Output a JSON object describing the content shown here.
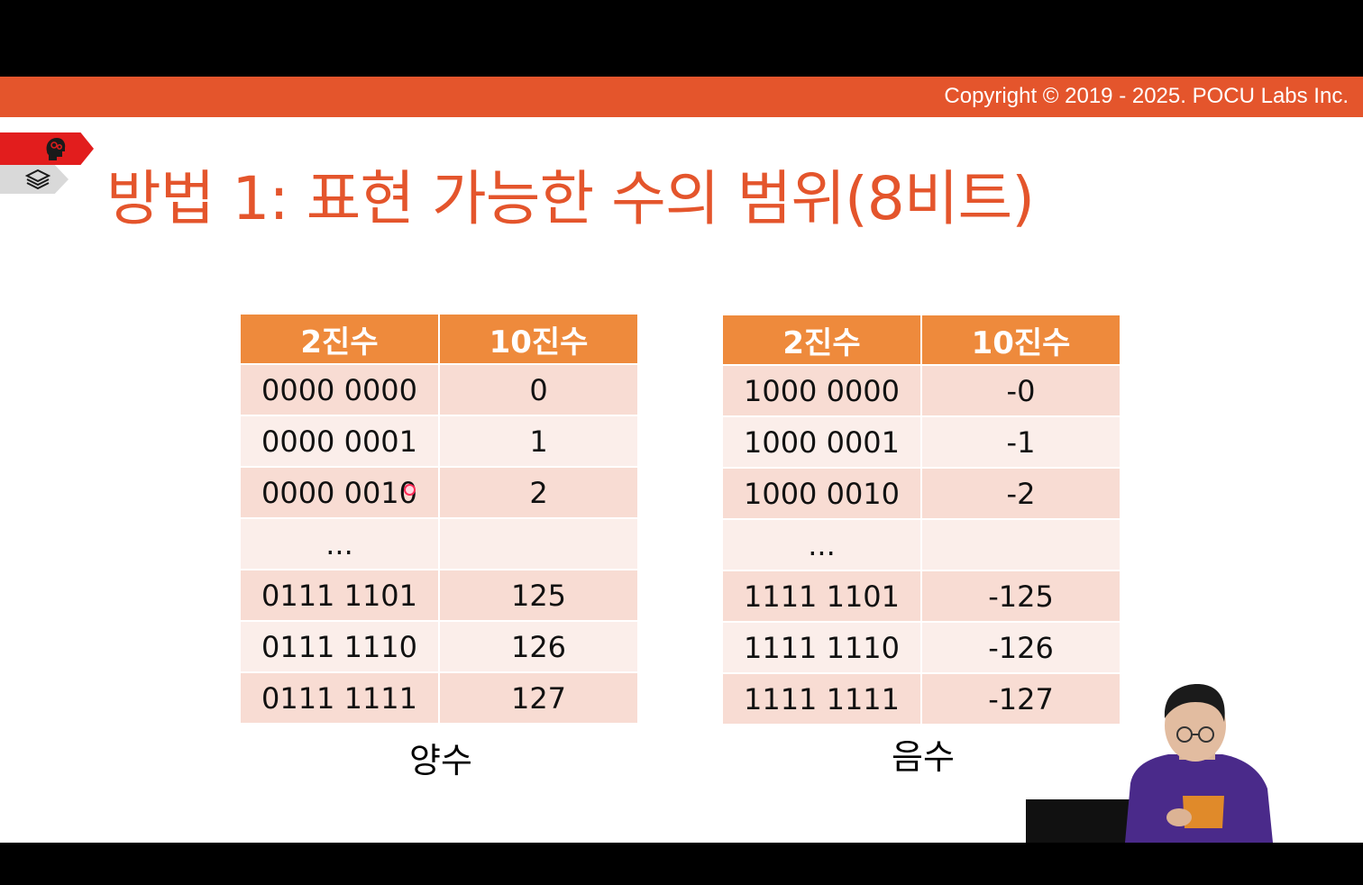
{
  "header": {
    "copyright": "Copyright © 2019 - 2025. POCU Labs Inc."
  },
  "sidebar_tags": [
    {
      "icon": "brain-head-icon",
      "color": "#e21d1d"
    },
    {
      "icon": "layers-stack-icon",
      "color": "#d9d9d9"
    }
  ],
  "slide": {
    "title": "방법 1: 표현 가능한 수의 범위(8비트)"
  },
  "colors": {
    "accent": "#e4552c",
    "table_header": "#ee8a3c",
    "row_dark": "#f8dcd3",
    "row_light": "#fbeeea"
  },
  "tables": {
    "positive": {
      "headers": [
        "2진수",
        "10진수"
      ],
      "rows": [
        [
          "0000 0000",
          "0"
        ],
        [
          "0000 0001",
          "1"
        ],
        [
          "0000 0010",
          "2"
        ],
        [
          "...",
          ""
        ],
        [
          "0111 1101",
          "125"
        ],
        [
          "0111 1110",
          "126"
        ],
        [
          "0111 1111",
          "127"
        ]
      ],
      "caption": "양수"
    },
    "negative": {
      "headers": [
        "2진수",
        "10진수"
      ],
      "rows": [
        [
          "1000 0000",
          "-0"
        ],
        [
          "1000 0001",
          "-1"
        ],
        [
          "1000 0010",
          "-2"
        ],
        [
          "...",
          ""
        ],
        [
          "1111 1101",
          "-125"
        ],
        [
          "1111 1110",
          "-126"
        ],
        [
          "1111 1111",
          "-127"
        ]
      ],
      "caption": "음수"
    }
  }
}
